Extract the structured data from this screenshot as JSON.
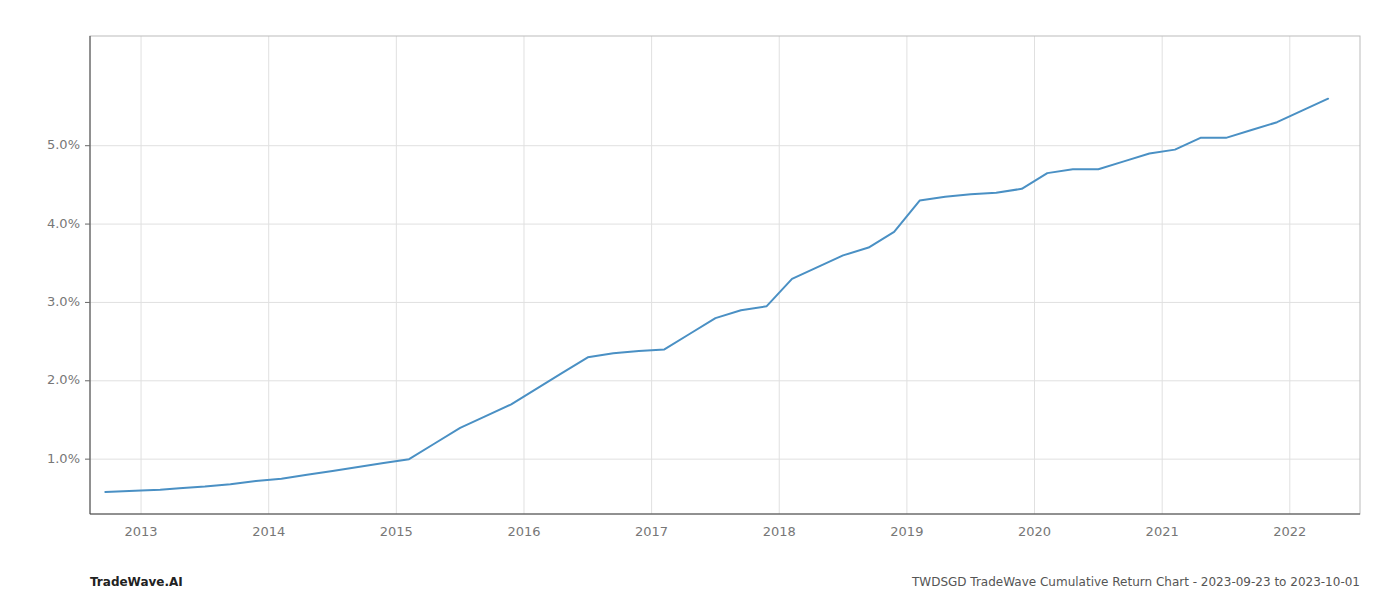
{
  "chart_data": {
    "type": "line",
    "x": [
      2012.72,
      2013.0,
      2013.15,
      2013.3,
      2013.5,
      2013.7,
      2013.9,
      2014.1,
      2014.3,
      2014.5,
      2014.7,
      2014.9,
      2015.1,
      2015.3,
      2015.5,
      2015.7,
      2015.9,
      2016.1,
      2016.3,
      2016.5,
      2016.7,
      2016.9,
      2017.1,
      2017.3,
      2017.5,
      2017.7,
      2017.9,
      2018.1,
      2018.3,
      2018.5,
      2018.7,
      2018.9,
      2019.1,
      2019.3,
      2019.5,
      2019.7,
      2019.9,
      2020.1,
      2020.3,
      2020.5,
      2020.7,
      2020.9,
      2021.1,
      2021.3,
      2021.5,
      2021.7,
      2021.9,
      2022.1,
      2022.3
    ],
    "values": [
      0.0058,
      0.006,
      0.0061,
      0.0063,
      0.0065,
      0.0068,
      0.0072,
      0.0075,
      0.008,
      0.0085,
      0.009,
      0.0095,
      0.01,
      0.012,
      0.014,
      0.0155,
      0.017,
      0.019,
      0.021,
      0.023,
      0.0235,
      0.0238,
      0.024,
      0.026,
      0.028,
      0.029,
      0.0295,
      0.033,
      0.0345,
      0.036,
      0.037,
      0.039,
      0.043,
      0.0435,
      0.0438,
      0.044,
      0.0445,
      0.0465,
      0.047,
      0.047,
      0.048,
      0.049,
      0.0495,
      0.051,
      0.051,
      0.052,
      0.053,
      0.0545,
      0.056
    ],
    "color": "#4a90c4",
    "xlim": [
      2012.6,
      2022.55
    ],
    "xticks": [
      2013,
      2014,
      2015,
      2016,
      2017,
      2018,
      2019,
      2020,
      2021,
      2022
    ],
    "ylim": [
      0.003,
      0.064
    ],
    "yticks": [
      {
        "value": 0.01,
        "label": "1.0%"
      },
      {
        "value": 0.02,
        "label": "2.0%"
      },
      {
        "value": 0.03,
        "label": "3.0%"
      },
      {
        "value": 0.04,
        "label": "4.0%"
      },
      {
        "value": 0.05,
        "label": "5.0%"
      }
    ],
    "grid": true,
    "annotations": [
      "TradeWave.AI",
      "TWDSGD TradeWave Cumulative Return Chart - 2023-09-23 to 2023-10-01"
    ]
  }
}
